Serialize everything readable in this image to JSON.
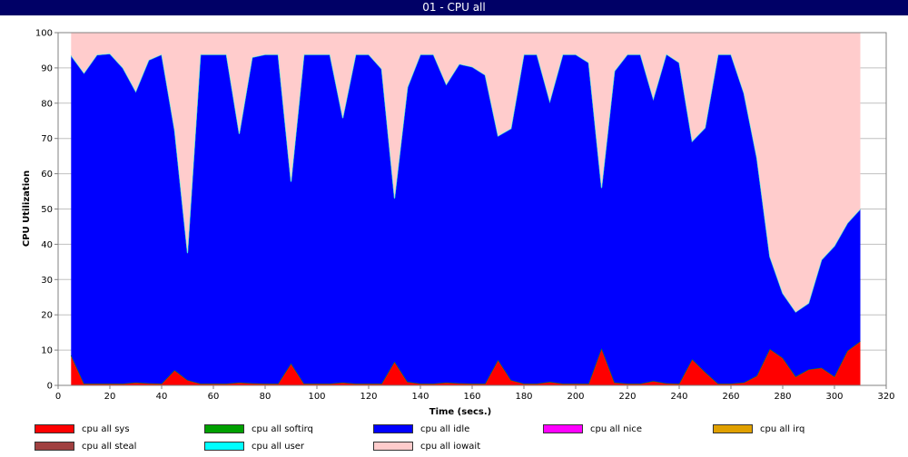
{
  "window": {
    "title": "01 - CPU all"
  },
  "chart_data": {
    "type": "area",
    "stacked": true,
    "xlabel": "Time (secs.)",
    "ylabel": "CPU Utilization",
    "xlim": [
      0,
      320
    ],
    "ylim": [
      0,
      100
    ],
    "xticks": [
      0,
      20,
      40,
      60,
      80,
      100,
      120,
      140,
      160,
      180,
      200,
      220,
      240,
      260,
      280,
      300,
      320
    ],
    "yticks": [
      0,
      10,
      20,
      30,
      40,
      50,
      60,
      70,
      80,
      90,
      100
    ],
    "grid": true,
    "legend_position": "bottom",
    "x": [
      5,
      10,
      15,
      20,
      25,
      30,
      35,
      40,
      45,
      50,
      55,
      60,
      65,
      70,
      75,
      80,
      85,
      90,
      95,
      100,
      105,
      110,
      115,
      120,
      125,
      130,
      135,
      140,
      145,
      150,
      155,
      160,
      165,
      170,
      175,
      180,
      185,
      190,
      195,
      200,
      205,
      210,
      215,
      220,
      225,
      230,
      235,
      240,
      245,
      250,
      255,
      260,
      265,
      270,
      275,
      280,
      285,
      290,
      295,
      300,
      305,
      310
    ],
    "series": [
      {
        "name": "cpu all sys",
        "color": "#ff0000",
        "values": [
          8.5,
          0.5,
          0.5,
          0.5,
          0.5,
          0.8,
          0.6,
          0.5,
          4.3,
          1.5,
          0.5,
          0.5,
          0.5,
          0.8,
          0.6,
          0.5,
          0.5,
          6.2,
          0.5,
          0.5,
          0.5,
          0.8,
          0.5,
          0.5,
          0.5,
          6.7,
          1.0,
          0.5,
          0.5,
          0.8,
          0.6,
          0.5,
          0.5,
          7.2,
          1.5,
          0.5,
          0.5,
          1.0,
          0.5,
          0.5,
          0.5,
          10.5,
          0.8,
          0.5,
          0.5,
          1.2,
          0.6,
          0.5,
          7.4,
          3.8,
          0.5,
          0.5,
          0.8,
          2.7,
          10.3,
          7.8,
          2.5,
          4.5,
          5.0,
          2.5,
          9.8,
          12.5
        ]
      },
      {
        "name": "cpu all softirq",
        "color": "#00a000",
        "values": [
          0,
          0,
          0,
          0,
          0,
          0,
          0,
          0,
          0,
          0,
          0,
          0,
          0,
          0,
          0,
          0,
          0,
          0,
          0,
          0,
          0,
          0,
          0,
          0,
          0,
          0,
          0,
          0,
          0,
          0,
          0,
          0,
          0,
          0,
          0,
          0,
          0,
          0,
          0,
          0,
          0,
          0,
          0,
          0,
          0,
          0,
          0,
          0,
          0,
          0,
          0,
          0,
          0,
          0,
          0,
          0,
          0,
          0,
          0,
          0,
          0,
          0
        ]
      },
      {
        "name": "cpu all idle",
        "color": "#0000ff",
        "values": [
          85.0,
          88.0,
          93.2,
          93.5,
          89.5,
          82.5,
          91.6,
          93.3,
          68.0,
          36.0,
          93.3,
          93.3,
          93.3,
          70.5,
          92.4,
          93.3,
          93.3,
          51.5,
          93.3,
          93.3,
          93.3,
          75.0,
          93.3,
          93.3,
          89.2,
          46.3,
          83.5,
          93.3,
          93.3,
          84.5,
          90.5,
          89.8,
          87.5,
          63.5,
          71.3,
          93.3,
          93.3,
          79.5,
          93.3,
          93.3,
          91.0,
          45.5,
          88.3,
          93.3,
          93.3,
          80.0,
          93.3,
          91.0,
          61.8,
          69.2,
          93.3,
          93.3,
          82.0,
          61.8,
          26.2,
          18.3,
          18.3,
          18.8,
          30.6,
          37.0,
          36.2,
          37.5
        ]
      },
      {
        "name": "cpu all nice",
        "color": "#ff00ff",
        "values": [
          0,
          0,
          0,
          0,
          0,
          0,
          0,
          0,
          0,
          0,
          0,
          0,
          0,
          0,
          0,
          0,
          0,
          0,
          0,
          0,
          0,
          0,
          0,
          0,
          0,
          0,
          0,
          0,
          0,
          0,
          0,
          0,
          0,
          0,
          0,
          0,
          0,
          0,
          0,
          0,
          0,
          0,
          0,
          0,
          0,
          0,
          0,
          0,
          0,
          0,
          0,
          0,
          0,
          0,
          0,
          0,
          0,
          0,
          0,
          0,
          0,
          0
        ]
      },
      {
        "name": "cpu all irq",
        "color": "#e0a000",
        "values": [
          0,
          0,
          0,
          0,
          0,
          0,
          0,
          0,
          0,
          0,
          0,
          0,
          0,
          0,
          0,
          0,
          0,
          0,
          0,
          0,
          0,
          0,
          0,
          0,
          0,
          0,
          0,
          0,
          0,
          0,
          0,
          0,
          0,
          0,
          0,
          0,
          0,
          0,
          0,
          0,
          0,
          0,
          0,
          0,
          0,
          0,
          0,
          0,
          0,
          0,
          0,
          0,
          0,
          0,
          0,
          0,
          0,
          0,
          0,
          0,
          0,
          0
        ]
      },
      {
        "name": "cpu all steal",
        "color": "#a04040",
        "values": [
          0,
          0,
          0,
          0,
          0,
          0,
          0,
          0,
          0,
          0,
          0,
          0,
          0,
          0,
          0,
          0,
          0,
          0,
          0,
          0,
          0,
          0,
          0,
          0,
          0,
          0,
          0,
          0,
          0,
          0,
          0,
          0,
          0,
          0,
          0,
          0,
          0,
          0,
          0,
          0,
          0,
          0,
          0,
          0,
          0,
          0,
          0,
          0,
          0,
          0,
          0,
          0,
          0,
          0,
          0,
          0,
          0,
          0,
          0,
          0,
          0,
          0
        ]
      },
      {
        "name": "cpu all user",
        "color": "#00ffff",
        "values": [
          0,
          0,
          0,
          0,
          0,
          0,
          0,
          0,
          0,
          0,
          0,
          0,
          0,
          0,
          0,
          0,
          0,
          0,
          0,
          0,
          0,
          0,
          0,
          0,
          0,
          0,
          0,
          0,
          0,
          0,
          0,
          0,
          0,
          0,
          0,
          0,
          0,
          0,
          0,
          0,
          0,
          0,
          0,
          0,
          0,
          0,
          0,
          0,
          0,
          0,
          0,
          0,
          0,
          0,
          0,
          0,
          0,
          0,
          0,
          0,
          0,
          0
        ]
      },
      {
        "name": "cpu all iowait",
        "color": "#ffcccc",
        "values": [
          6.5,
          11.5,
          6.3,
          6.0,
          10.0,
          16.7,
          7.8,
          6.2,
          27.7,
          62.5,
          6.2,
          6.2,
          6.2,
          28.7,
          7.0,
          6.2,
          6.2,
          42.3,
          6.2,
          6.2,
          6.2,
          24.2,
          6.2,
          6.2,
          10.3,
          47.0,
          15.5,
          6.2,
          6.2,
          14.7,
          8.9,
          9.7,
          12.0,
          29.3,
          27.2,
          6.2,
          6.2,
          19.5,
          6.2,
          6.2,
          8.5,
          44.0,
          10.9,
          6.2,
          6.2,
          18.8,
          6.1,
          8.5,
          30.8,
          27.0,
          6.2,
          6.2,
          17.2,
          35.5,
          63.5,
          73.9,
          79.2,
          76.7,
          64.4,
          60.5,
          54.0,
          50.0
        ]
      }
    ]
  }
}
